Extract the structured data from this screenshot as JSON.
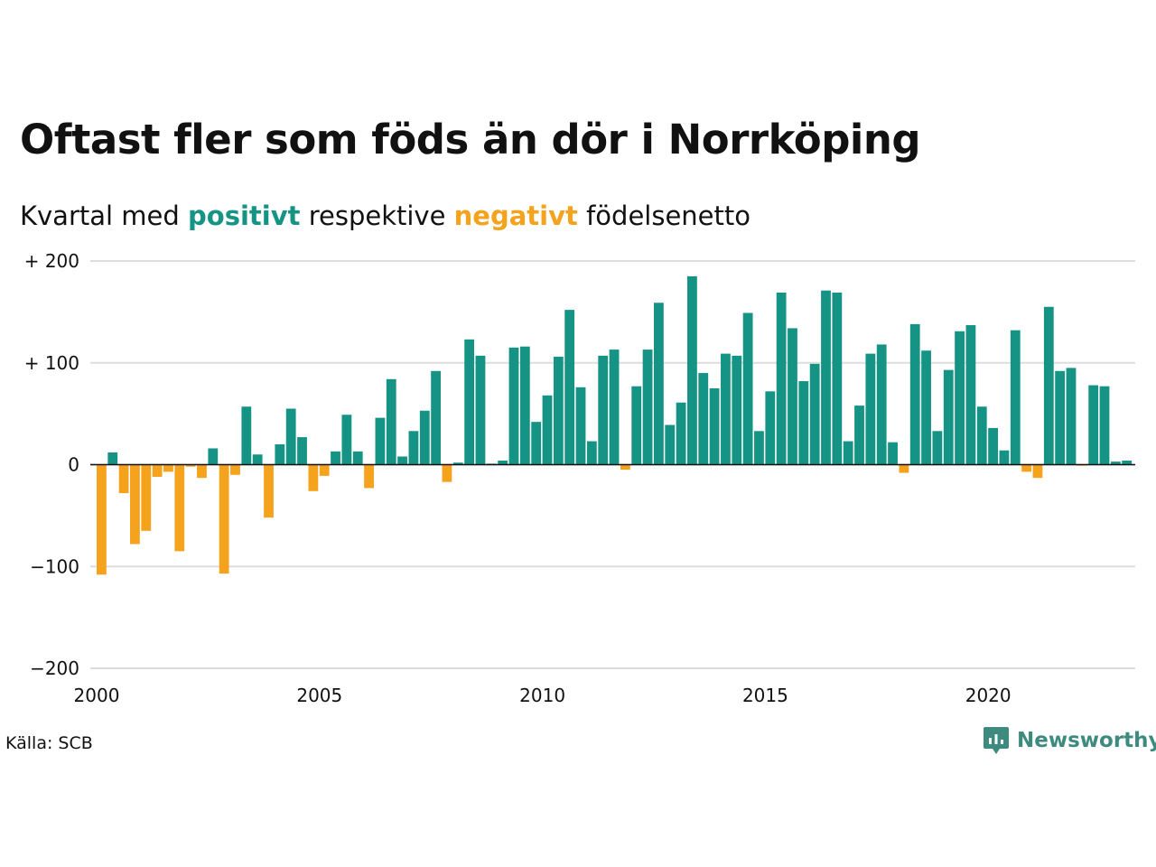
{
  "title": "Oftast fler som föds än dör i Norrköping",
  "subtitle": {
    "prefix": "Kvartal med ",
    "positive_word": "positivt",
    "middle": " respektive ",
    "negative_word": "negativt",
    "suffix": " födelsenetto"
  },
  "source": "Källa: SCB",
  "brand": {
    "name": "Newsworthy",
    "icon": "newsworthy-chart-bubble-icon"
  },
  "colors": {
    "positive": "#159485",
    "negative": "#f5a21d",
    "grid": "#dddddd",
    "brand": "#3d8a7f"
  },
  "chart_data": {
    "type": "bar",
    "x_start": "2000 Q1",
    "x_ticks": [
      "2000",
      "2005",
      "2010",
      "2015",
      "2020"
    ],
    "y_ticks": [
      "−200",
      "−100",
      "0",
      "+ 100",
      "+ 200"
    ],
    "ylim": [
      -200,
      200
    ],
    "grid": true,
    "values": [
      -108,
      12,
      -28,
      -78,
      -65,
      -12,
      -7,
      -85,
      -2,
      -13,
      16,
      -107,
      -10,
      57,
      10,
      -52,
      20,
      55,
      27,
      -26,
      -11,
      13,
      49,
      13,
      -23,
      46,
      84,
      8,
      33,
      53,
      92,
      -17,
      2,
      123,
      107,
      1,
      4,
      115,
      116,
      42,
      68,
      106,
      152,
      76,
      23,
      107,
      113,
      -5,
      77,
      113,
      159,
      39,
      61,
      185,
      90,
      75,
      109,
      107,
      149,
      33,
      72,
      169,
      134,
      82,
      99,
      171,
      169,
      23,
      58,
      109,
      118,
      22,
      -8,
      138,
      112,
      33,
      93,
      131,
      137,
      57,
      36,
      14,
      132,
      -7,
      -13,
      155,
      92,
      95,
      -1,
      78,
      77,
      3,
      4
    ]
  }
}
